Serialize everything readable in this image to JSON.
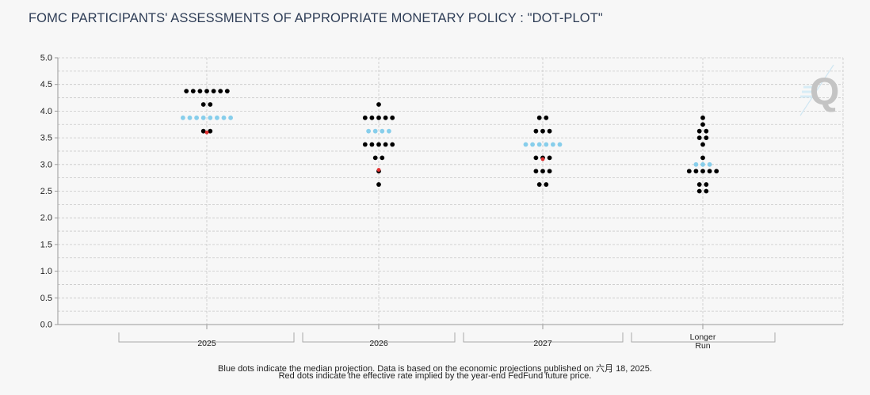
{
  "page": {
    "title": "FOMC PARTICIPANTS' ASSESSMENTS OF APPROPRIATE MONETARY POLICY : \"DOT-PLOT\"",
    "footnote_line1": "Blue dots indicate the median projection. Data is based on the economic projections published on 六月 18, 2025.",
    "footnote_line2": "Red dots indicate the effective rate implied by the year-end FedFund future price.",
    "logo_letter": "Q"
  },
  "colors": {
    "participant_dot": "#000000",
    "median_dot": "#87ceeb",
    "implied_dot": "#e03030",
    "grid": "#c8c8c8",
    "title": "#2e3d56",
    "logo": "#c4c4c4"
  },
  "chart_data": {
    "type": "scatter",
    "title": "FOMC PARTICIPANTS' ASSESSMENTS OF APPROPRIATE MONETARY POLICY : \"DOT-PLOT\"",
    "xlabel": "",
    "ylabel": "",
    "ylim": [
      0,
      5
    ],
    "y_ticks": [
      "0.0",
      "0.5",
      "1.0",
      "1.5",
      "2.0",
      "2.5",
      "3.0",
      "3.5",
      "4.0",
      "4.5",
      "5.0"
    ],
    "grid": true,
    "categories": [
      {
        "label": "2025",
        "participants": [
          {
            "rate": 4.375,
            "count": 7
          },
          {
            "rate": 4.125,
            "count": 2
          },
          {
            "rate": 3.625,
            "count": 2
          }
        ],
        "median": {
          "rate": 3.875,
          "count": 8
        },
        "implied": 3.6
      },
      {
        "label": "2026",
        "participants": [
          {
            "rate": 4.125,
            "count": 1
          },
          {
            "rate": 3.875,
            "count": 5
          },
          {
            "rate": 3.375,
            "count": 5
          },
          {
            "rate": 3.125,
            "count": 2
          },
          {
            "rate": 2.875,
            "count": 1
          },
          {
            "rate": 2.625,
            "count": 1
          }
        ],
        "median": {
          "rate": 3.625,
          "count": 4
        },
        "implied": 2.9
      },
      {
        "label": "2027",
        "participants": [
          {
            "rate": 3.875,
            "count": 2
          },
          {
            "rate": 3.625,
            "count": 3
          },
          {
            "rate": 3.125,
            "count": 3
          },
          {
            "rate": 2.875,
            "count": 3
          },
          {
            "rate": 2.625,
            "count": 2
          }
        ],
        "median": {
          "rate": 3.375,
          "count": 6
        },
        "implied": 3.1
      },
      {
        "label": "Longer Run",
        "participants": [
          {
            "rate": 3.875,
            "count": 1
          },
          {
            "rate": 3.75,
            "count": 1
          },
          {
            "rate": 3.625,
            "count": 2
          },
          {
            "rate": 3.5,
            "count": 2
          },
          {
            "rate": 3.375,
            "count": 1
          },
          {
            "rate": 3.125,
            "count": 1
          },
          {
            "rate": 2.875,
            "count": 5
          },
          {
            "rate": 2.625,
            "count": 2
          },
          {
            "rate": 2.5,
            "count": 2
          }
        ],
        "median": {
          "rate": 3.0,
          "count": 3
        },
        "implied": null
      }
    ]
  }
}
